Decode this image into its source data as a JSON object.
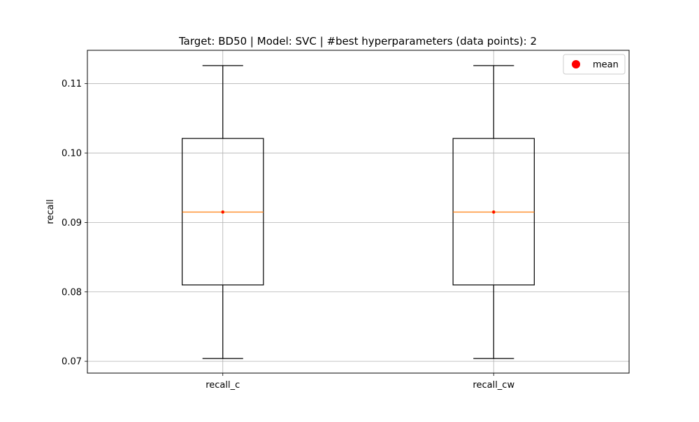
{
  "chart_data": {
    "type": "box",
    "title": "Target: BD50 | Model: SVC | #best hyperparameters (data points): 2",
    "xlabel": "",
    "ylabel": "recall",
    "ylim": [
      0.0683,
      0.1148
    ],
    "yticks": [
      0.07,
      0.08,
      0.09,
      0.1,
      0.11
    ],
    "ytick_labels": [
      "0.07",
      "0.08",
      "0.09",
      "0.10",
      "0.11"
    ],
    "categories": [
      "recall_c",
      "recall_cw"
    ],
    "boxes": [
      {
        "name": "recall_c",
        "whislo": 0.0704,
        "q1": 0.081,
        "med": 0.0915,
        "q3": 0.1021,
        "whishi": 0.1126,
        "mean": 0.0915
      },
      {
        "name": "recall_cw",
        "whislo": 0.0704,
        "q1": 0.081,
        "med": 0.0915,
        "q3": 0.1021,
        "whishi": 0.1126,
        "mean": 0.0915
      }
    ],
    "legend": {
      "entries": [
        "mean"
      ],
      "placement": "top-right"
    },
    "grid": true,
    "colors": {
      "box": "#000000",
      "median": "#ff7f0e",
      "mean": "#ff0000",
      "grid": "#b0b0b0"
    }
  }
}
